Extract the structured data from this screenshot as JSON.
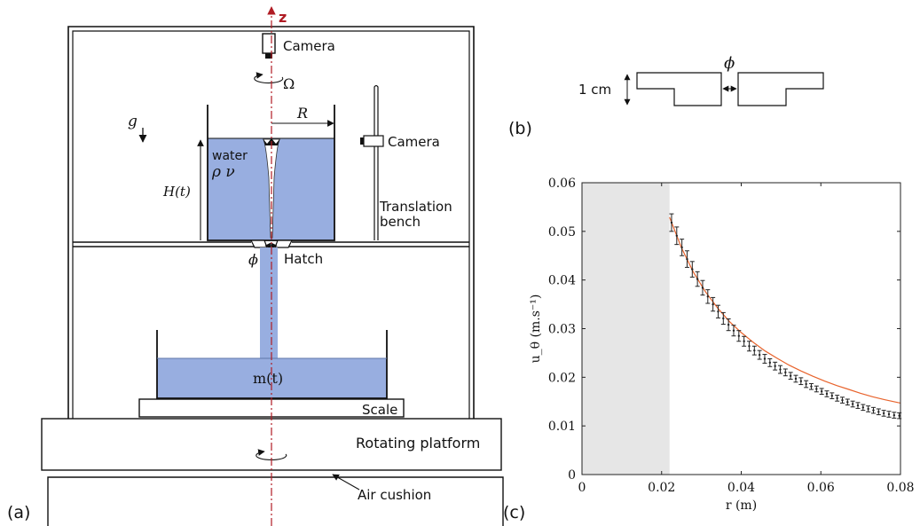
{
  "panel_a": {
    "panel_label": "(a)",
    "axis_label": "z",
    "top_camera_label": "Camera",
    "rotation_label": "Ω",
    "radius_label": "R",
    "gravity_label": "g",
    "side_camera_label": "Camera",
    "fluid_label": "water",
    "fluid_props_label": "ρ ν",
    "height_label": "H(t)",
    "bench_label_line1": "Translation",
    "bench_label_line2": "bench",
    "hatch_diameter_label": "ϕ",
    "hatch_label": "Hatch",
    "mass_label": "m(t)",
    "scale_label": "Scale",
    "platform_label": "Rotating platform",
    "air_cushion_label": "Air cushion",
    "colors": {
      "water": "#98aee0",
      "axis": "#b01c24"
    }
  },
  "panel_b": {
    "panel_label": "(b)",
    "size_label": "1 cm",
    "gap_label": "ϕ"
  },
  "panel_c": {
    "panel_label": "(c)",
    "chart_data": {
      "type": "scatter",
      "xlabel": "r  (m)",
      "ylabel": "u_θ  (m.s⁻¹)",
      "xlim": [
        0,
        0.08
      ],
      "ylim": [
        0,
        0.06
      ],
      "xticks": [
        "0",
        "0.02",
        "0.04",
        "0.06",
        "0.08"
      ],
      "yticks": [
        "0",
        "0.01",
        "0.02",
        "0.03",
        "0.04",
        "0.05",
        "0.06"
      ],
      "shaded_region_x": [
        0,
        0.022
      ],
      "grid": false,
      "legend": "none",
      "series": [
        {
          "kind": "points_with_errorbars",
          "color": "#222222",
          "x": [
            0.0225,
            0.0238,
            0.0251,
            0.0264,
            0.0277,
            0.029,
            0.0303,
            0.0316,
            0.0329,
            0.0342,
            0.0355,
            0.0368,
            0.0381,
            0.0394,
            0.0407,
            0.042,
            0.0433,
            0.0446,
            0.0459,
            0.0472,
            0.0485,
            0.0498,
            0.0511,
            0.0524,
            0.0537,
            0.055,
            0.0563,
            0.0576,
            0.0589,
            0.0602,
            0.0615,
            0.0628,
            0.0641,
            0.0654,
            0.0667,
            0.068,
            0.0693,
            0.0706,
            0.0719,
            0.0732,
            0.0745,
            0.0758,
            0.0771,
            0.0784,
            0.0797
          ],
          "y": [
            0.0518,
            0.0491,
            0.0467,
            0.0443,
            0.0422,
            0.0402,
            0.0384,
            0.0366,
            0.035,
            0.0335,
            0.0321,
            0.0308,
            0.0296,
            0.0285,
            0.0274,
            0.0264,
            0.0255,
            0.0246,
            0.0238,
            0.023,
            0.0223,
            0.0216,
            0.021,
            0.0203,
            0.0197,
            0.0192,
            0.0186,
            0.0181,
            0.0176,
            0.0171,
            0.0166,
            0.0162,
            0.0157,
            0.0153,
            0.0149,
            0.0145,
            0.0142,
            0.0138,
            0.0135,
            0.0132,
            0.0129,
            0.0126,
            0.0124,
            0.0122,
            0.0121
          ],
          "err": [
            0.0018,
            0.0018,
            0.0017,
            0.0017,
            0.0016,
            0.0015,
            0.0015,
            0.0014,
            0.0014,
            0.0013,
            0.0012,
            0.0012,
            0.0011,
            0.0011,
            0.001,
            0.001,
            0.0009,
            0.0009,
            0.0009,
            0.0008,
            0.0008,
            0.0008,
            0.0007,
            0.0007,
            0.0007,
            0.0007,
            0.0007,
            0.0006,
            0.0006,
            0.0006,
            0.0006,
            0.0006,
            0.0006,
            0.0006,
            0.0006,
            0.0006,
            0.0006,
            0.0006,
            0.0006,
            0.0006,
            0.0006,
            0.0006,
            0.0006,
            0.0006,
            0.0006
          ]
        },
        {
          "kind": "fit_curve",
          "color": "#e8632c",
          "x": [
            0.022,
            0.025,
            0.028,
            0.031,
            0.034,
            0.037,
            0.04,
            0.043,
            0.046,
            0.049,
            0.052,
            0.055,
            0.058,
            0.061,
            0.064,
            0.067,
            0.07,
            0.073,
            0.076,
            0.08
          ],
          "y": [
            0.0529,
            0.0466,
            0.0416,
            0.0376,
            0.0343,
            0.0315,
            0.0292,
            0.0272,
            0.0254,
            0.0239,
            0.0225,
            0.0213,
            0.0202,
            0.0192,
            0.0183,
            0.0175,
            0.0167,
            0.016,
            0.0154,
            0.0147
          ]
        }
      ]
    }
  }
}
